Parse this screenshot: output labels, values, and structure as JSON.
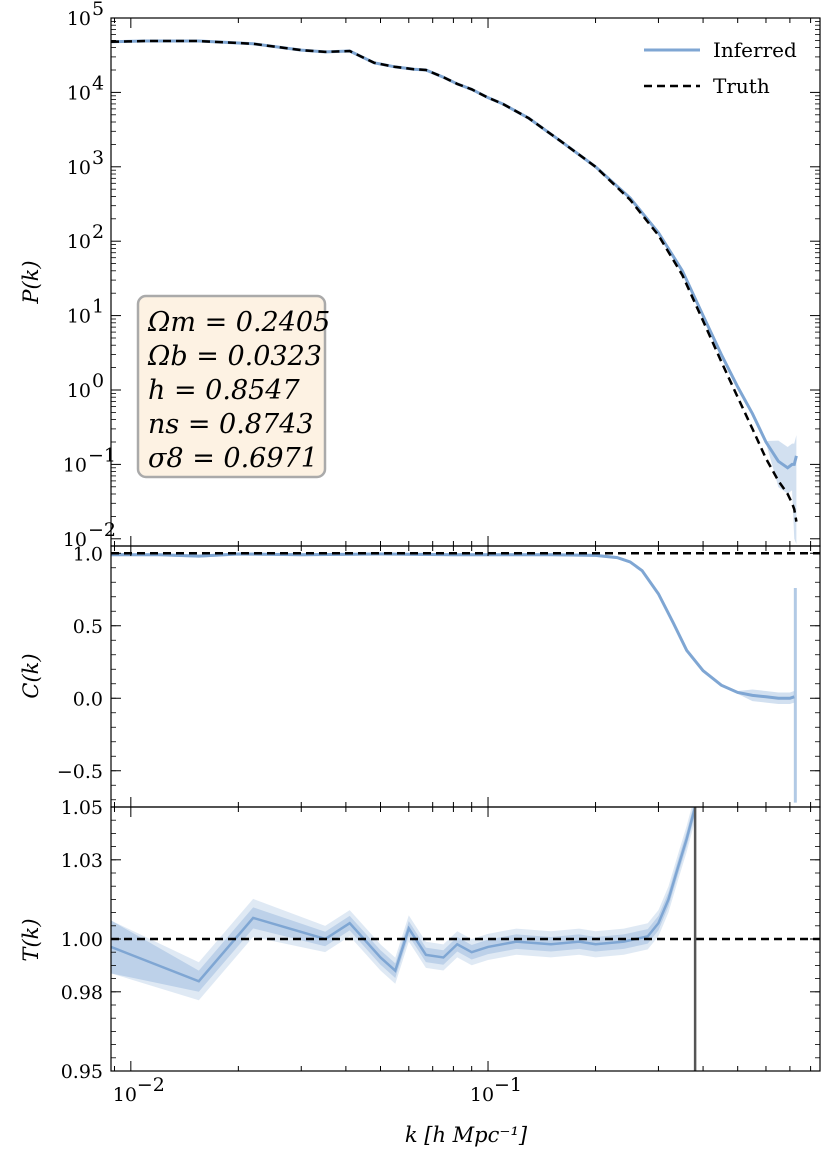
{
  "chart_data": [
    {
      "panel": "power_spectrum",
      "type": "line",
      "ylabel": "P(k)",
      "xscale": "log",
      "yscale": "log",
      "xlim": [
        0.0088,
        0.85
      ],
      "ylim": [
        0.008,
        100000
      ],
      "x_ticks": [
        "10^-2",
        "10^-1"
      ],
      "y_ticks": [
        "10^-2",
        "10^-1",
        "10^0",
        "10^1",
        "10^2",
        "10^3",
        "10^4",
        "10^5"
      ],
      "legend": {
        "position": "top-right",
        "entries": [
          "Inferred",
          "Truth"
        ]
      },
      "series": [
        {
          "name": "Inferred",
          "style": "solid",
          "color": "#7fa6d3",
          "x": [
            0.0088,
            0.011,
            0.0155,
            0.022,
            0.03,
            0.035,
            0.041,
            0.048,
            0.055,
            0.062,
            0.067,
            0.075,
            0.082,
            0.09,
            0.1,
            0.11,
            0.13,
            0.16,
            0.2,
            0.25,
            0.3,
            0.35,
            0.4,
            0.45,
            0.5,
            0.55,
            0.6,
            0.65,
            0.69,
            0.71,
            0.72,
            0.73
          ],
          "y": [
            48000,
            49000,
            49000,
            45000,
            37000,
            35000,
            36000,
            25000,
            22000,
            20500,
            20000,
            16000,
            13000,
            11000,
            8500,
            7000,
            4500,
            2200,
            1000,
            380,
            130,
            40,
            10,
            3,
            1.1,
            0.48,
            0.2,
            0.11,
            0.09,
            0.1,
            0.1,
            0.13
          ]
        },
        {
          "name": "Truth",
          "style": "dashed",
          "color": "#000000",
          "x": [
            0.0088,
            0.011,
            0.0155,
            0.022,
            0.03,
            0.035,
            0.041,
            0.048,
            0.055,
            0.062,
            0.067,
            0.075,
            0.082,
            0.09,
            0.1,
            0.11,
            0.13,
            0.16,
            0.2,
            0.25,
            0.3,
            0.35,
            0.4,
            0.45,
            0.5,
            0.55,
            0.6,
            0.65,
            0.69,
            0.71,
            0.72,
            0.73
          ],
          "y": [
            48000,
            49000,
            49000,
            45000,
            37000,
            35000,
            36000,
            25000,
            22000,
            20500,
            20000,
            16000,
            13000,
            11000,
            8500,
            7000,
            4500,
            2200,
            1000,
            360,
            120,
            35,
            8.5,
            2.4,
            0.8,
            0.3,
            0.12,
            0.06,
            0.04,
            0.03,
            0.025,
            0.017
          ]
        }
      ]
    },
    {
      "panel": "cross_correlation",
      "type": "line",
      "ylabel": "C(k)",
      "xscale": "log",
      "xlim": [
        0.0088,
        0.85
      ],
      "ylim": [
        -0.75,
        1.05
      ],
      "y_ticks": [
        "1.0",
        "0.5",
        "0.0",
        "−0.5"
      ],
      "reference_line": 1.0,
      "series": [
        {
          "name": "Inferred",
          "color": "#7fa6d3",
          "x": [
            0.0088,
            0.012,
            0.0155,
            0.02,
            0.03,
            0.05,
            0.08,
            0.1,
            0.15,
            0.2,
            0.23,
            0.25,
            0.27,
            0.3,
            0.33,
            0.36,
            0.4,
            0.45,
            0.5,
            0.55,
            0.6,
            0.65,
            0.7,
            0.72
          ],
          "y": [
            0.99,
            0.99,
            0.98,
            0.995,
            0.99,
            0.995,
            0.99,
            0.99,
            0.99,
            0.985,
            0.97,
            0.94,
            0.88,
            0.72,
            0.52,
            0.33,
            0.19,
            0.09,
            0.04,
            0.02,
            0.01,
            0.0,
            0.0,
            0.01
          ]
        }
      ]
    },
    {
      "panel": "transfer_function",
      "type": "line",
      "ylabel": "T(k)",
      "xlabel": "k [h Mpc^-1]",
      "xscale": "log",
      "xlim": [
        0.0088,
        0.85
      ],
      "ylim": [
        0.95,
        1.05
      ],
      "y_ticks": [
        "1.05",
        "1.03",
        "1.00",
        "0.98",
        "0.95"
      ],
      "reference_line": 1.0,
      "vertical_line_x": 0.38,
      "series": [
        {
          "name": "Inferred",
          "color": "#7fa6d3",
          "x": [
            0.0088,
            0.0155,
            0.022,
            0.035,
            0.041,
            0.05,
            0.055,
            0.06,
            0.067,
            0.075,
            0.082,
            0.09,
            0.1,
            0.12,
            0.15,
            0.18,
            0.2,
            0.24,
            0.28,
            0.3,
            0.32,
            0.34,
            0.36,
            0.38
          ],
          "y": [
            0.997,
            0.984,
            1.008,
            1.0,
            1.006,
            0.993,
            0.988,
            1.004,
            0.994,
            0.993,
            0.998,
            0.995,
            0.997,
            0.999,
            0.998,
            0.999,
            0.998,
            0.999,
            1.001,
            1.006,
            1.015,
            1.027,
            1.038,
            1.05
          ]
        }
      ]
    }
  ],
  "parameters_box": {
    "lines": [
      "Ωm = 0.2405",
      "Ωb = 0.0323",
      "h = 0.8547",
      "ns = 0.8743",
      "σ8 = 0.6971"
    ]
  },
  "labels": {
    "p_ylabel": "P(k)",
    "c_ylabel": "C(k)",
    "t_ylabel": "T(k)",
    "xlabel": "k [h Mpc⁻¹]",
    "legend_inferred": "Inferred",
    "legend_truth": "Truth"
  },
  "colors": {
    "inferred": "#7fa6d3",
    "truth": "#000000",
    "box_bg": "#fdf2e3",
    "box_border": "#aaaaaa"
  }
}
